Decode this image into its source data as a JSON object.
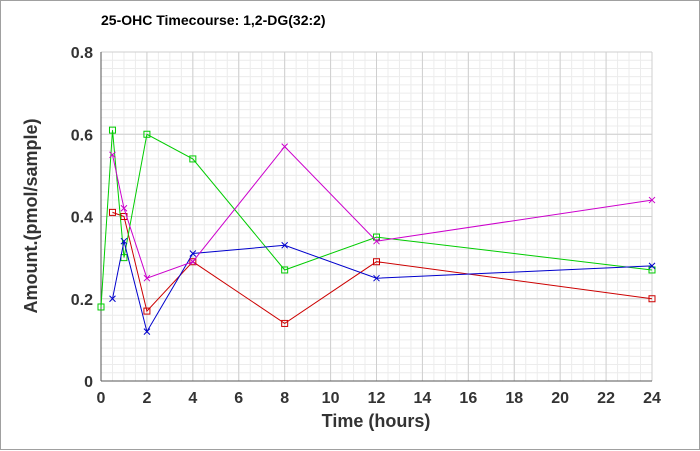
{
  "chart_data": {
    "type": "line",
    "title": "25-OHC Timecourse: 1,2-DG(32:2)",
    "xlabel": "Time (hours)",
    "ylabel": "Amount.(pmol/sample)",
    "xlim": [
      0,
      24
    ],
    "ylim": [
      0,
      0.8
    ],
    "x_ticks": [
      0,
      2,
      4,
      6,
      8,
      10,
      12,
      14,
      16,
      18,
      20,
      22,
      24
    ],
    "y_ticks": [
      0,
      0.2,
      0.4,
      0.6,
      0.8
    ],
    "y_tick_labels": [
      "0",
      "0.2",
      "0.4",
      "0.6",
      "0.8"
    ],
    "grid": true,
    "series": [
      {
        "color": "#cc0000",
        "marker": "square",
        "points": [
          [
            0.5,
            0.41
          ],
          [
            1,
            0.4
          ],
          [
            2,
            0.17
          ],
          [
            4,
            0.29
          ],
          [
            8,
            0.14
          ],
          [
            12,
            0.29
          ],
          [
            24,
            0.2
          ]
        ]
      },
      {
        "color": "#00cc00",
        "marker": "square",
        "points": [
          [
            0,
            0.18
          ],
          [
            0.5,
            0.61
          ],
          [
            1,
            0.3
          ],
          [
            2,
            0.6
          ],
          [
            4,
            0.54
          ],
          [
            8,
            0.27
          ],
          [
            12,
            0.35
          ],
          [
            24,
            0.27
          ]
        ]
      },
      {
        "color": "#0000cc",
        "marker": "cross",
        "points": [
          [
            0.5,
            0.2
          ],
          [
            1,
            0.34
          ],
          [
            2,
            0.12
          ],
          [
            4,
            0.31
          ],
          [
            8,
            0.33
          ],
          [
            12,
            0.25
          ],
          [
            24,
            0.28
          ]
        ]
      },
      {
        "color": "#cc00cc",
        "marker": "cross",
        "points": [
          [
            0.5,
            0.55
          ],
          [
            1,
            0.42
          ],
          [
            2,
            0.25
          ],
          [
            4,
            0.29
          ],
          [
            8,
            0.57
          ],
          [
            12,
            0.34
          ],
          [
            24,
            0.44
          ]
        ]
      }
    ]
  }
}
